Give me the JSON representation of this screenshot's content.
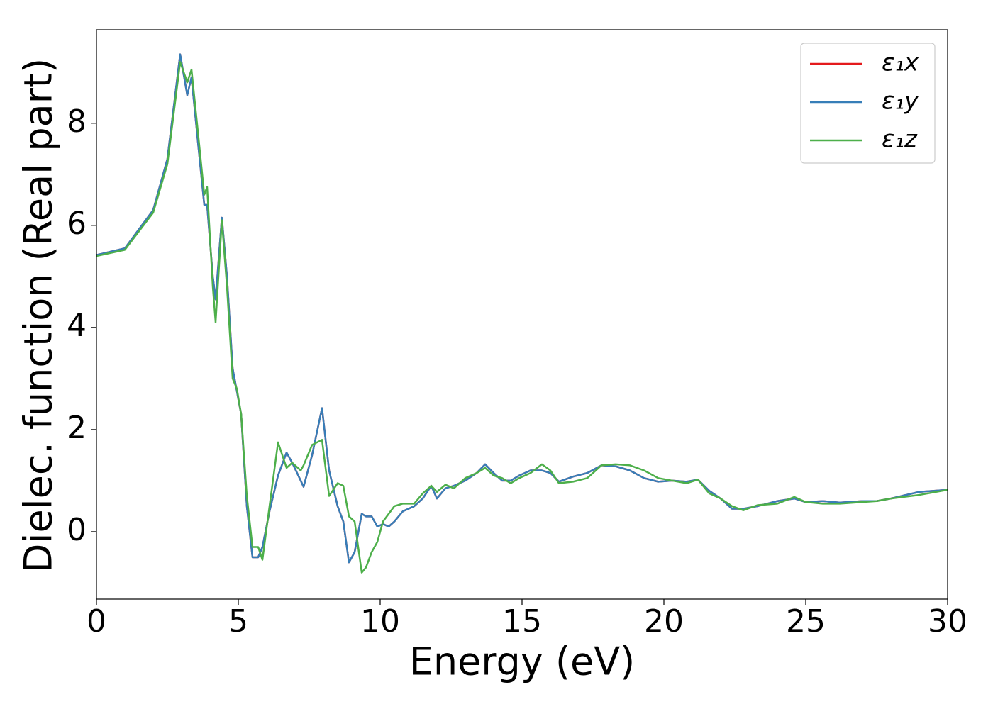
{
  "chart_data": {
    "type": "line",
    "xlabel": "Energy (eV)",
    "ylabel": "Dielec. function (Real part)",
    "x": [
      0,
      1,
      2,
      2.5,
      2.95,
      3.2,
      3.35,
      3.6,
      3.8,
      3.9,
      4.1,
      4.2,
      4.42,
      4.6,
      4.8,
      4.95,
      5.1,
      5.3,
      5.5,
      5.7,
      5.85,
      6.1,
      6.4,
      6.7,
      6.9,
      7.2,
      7.3,
      7.6,
      7.95,
      8.2,
      8.5,
      8.7,
      8.9,
      9.1,
      9.35,
      9.5,
      9.7,
      9.9,
      10.1,
      10.3,
      10.5,
      10.8,
      11.2,
      11.5,
      11.8,
      12.0,
      12.3,
      12.6,
      13,
      13.4,
      13.7,
      14.0,
      14.3,
      14.6,
      14.9,
      15.3,
      15.7,
      16,
      16.3,
      16.8,
      17.3,
      17.8,
      18.3,
      18.8,
      19.3,
      19.8,
      20.3,
      20.8,
      21.2,
      21.6,
      22.0,
      22.4,
      22.8,
      23.3,
      24,
      24.6,
      25,
      25.6,
      26.2,
      27,
      27.5,
      28,
      29,
      30
    ],
    "series": [
      {
        "name": "ε₁x",
        "color": "#e41a1c",
        "values": [
          5.42,
          5.55,
          6.3,
          7.3,
          9.35,
          8.55,
          8.9,
          7.5,
          6.4,
          6.4,
          5.0,
          4.55,
          6.15,
          5.0,
          3.2,
          2.75,
          2.3,
          0.5,
          -0.5,
          -0.5,
          -0.3,
          0.4,
          1.1,
          1.55,
          1.35,
          1.0,
          0.88,
          1.5,
          2.42,
          1.2,
          0.5,
          0.2,
          -0.6,
          -0.4,
          0.35,
          0.3,
          0.3,
          0.1,
          0.15,
          0.1,
          0.2,
          0.4,
          0.5,
          0.65,
          0.9,
          0.65,
          0.85,
          0.9,
          1.0,
          1.15,
          1.32,
          1.15,
          1.0,
          1.0,
          1.1,
          1.2,
          1.2,
          1.15,
          0.98,
          1.08,
          1.15,
          1.3,
          1.28,
          1.2,
          1.05,
          0.98,
          1.0,
          0.98,
          1.02,
          0.8,
          0.65,
          0.45,
          0.45,
          0.5,
          0.6,
          0.65,
          0.58,
          0.6,
          0.57,
          0.6,
          0.6,
          0.65,
          0.78,
          0.82
        ]
      },
      {
        "name": "ε₁y",
        "color": "#377eb8",
        "values": [
          5.42,
          5.55,
          6.3,
          7.3,
          9.35,
          8.55,
          8.9,
          7.5,
          6.4,
          6.4,
          5.0,
          4.55,
          6.15,
          5.0,
          3.2,
          2.75,
          2.3,
          0.5,
          -0.5,
          -0.5,
          -0.3,
          0.4,
          1.1,
          1.55,
          1.35,
          1.0,
          0.88,
          1.5,
          2.42,
          1.2,
          0.5,
          0.2,
          -0.6,
          -0.4,
          0.35,
          0.3,
          0.3,
          0.1,
          0.15,
          0.1,
          0.2,
          0.4,
          0.5,
          0.65,
          0.9,
          0.65,
          0.85,
          0.9,
          1.0,
          1.15,
          1.32,
          1.15,
          1.0,
          1.0,
          1.1,
          1.2,
          1.2,
          1.15,
          0.98,
          1.08,
          1.15,
          1.3,
          1.28,
          1.2,
          1.05,
          0.98,
          1.0,
          0.98,
          1.02,
          0.8,
          0.65,
          0.45,
          0.45,
          0.5,
          0.6,
          0.65,
          0.58,
          0.6,
          0.57,
          0.6,
          0.6,
          0.65,
          0.78,
          0.82
        ]
      },
      {
        "name": "ε₁z",
        "color": "#4daf4a",
        "values": [
          5.4,
          5.52,
          6.25,
          7.2,
          9.2,
          8.8,
          9.05,
          7.7,
          6.6,
          6.75,
          4.8,
          4.1,
          6.1,
          4.8,
          3.0,
          2.8,
          2.3,
          0.7,
          -0.3,
          -0.3,
          -0.55,
          0.5,
          1.75,
          1.25,
          1.35,
          1.2,
          1.3,
          1.7,
          1.8,
          0.7,
          0.95,
          0.9,
          0.3,
          0.2,
          -0.8,
          -0.7,
          -0.4,
          -0.2,
          0.2,
          0.35,
          0.5,
          0.55,
          0.55,
          0.75,
          0.9,
          0.78,
          0.92,
          0.85,
          1.05,
          1.15,
          1.25,
          1.1,
          1.05,
          0.95,
          1.05,
          1.15,
          1.32,
          1.2,
          0.95,
          0.98,
          1.05,
          1.3,
          1.32,
          1.3,
          1.2,
          1.05,
          1.0,
          0.95,
          1.02,
          0.75,
          0.65,
          0.5,
          0.42,
          0.52,
          0.55,
          0.68,
          0.58,
          0.55,
          0.55,
          0.58,
          0.6,
          0.65,
          0.72,
          0.82
        ]
      }
    ],
    "xlim": [
      0,
      30
    ],
    "xticks": [
      0,
      5,
      10,
      15,
      20,
      25,
      30
    ],
    "ylim": [
      -1.32,
      9.83
    ],
    "yticks": [
      0,
      2,
      4,
      6,
      8
    ],
    "grid": false,
    "legend": "upper right"
  }
}
